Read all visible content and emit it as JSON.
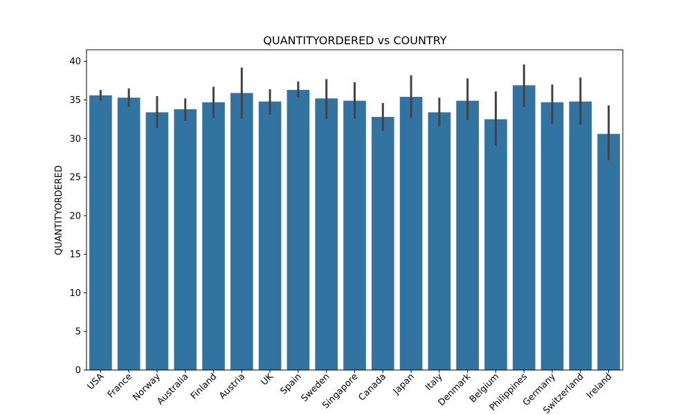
{
  "chart_data": {
    "type": "bar",
    "title": "QUANTITYORDERED vs COUNTRY",
    "xlabel": "",
    "ylabel": "QUANTITYORDERED",
    "ylim": [
      0,
      41.5
    ],
    "yticks": [
      0,
      5,
      10,
      15,
      20,
      25,
      30,
      35,
      40
    ],
    "categories": [
      "USA",
      "France",
      "Norway",
      "Australia",
      "Finland",
      "Austria",
      "UK",
      "Spain",
      "Sweden",
      "Singapore",
      "Canada",
      "Japan",
      "Italy",
      "Denmark",
      "Belgium",
      "Philippines",
      "Germany",
      "Switzerland",
      "Ireland"
    ],
    "values": [
      35.6,
      35.3,
      33.4,
      33.8,
      34.7,
      35.9,
      34.8,
      36.3,
      35.2,
      34.9,
      32.8,
      35.4,
      33.4,
      34.9,
      32.5,
      36.9,
      34.7,
      34.8,
      30.6
    ],
    "error_low": [
      34.9,
      34.1,
      31.4,
      32.3,
      32.7,
      32.6,
      33.1,
      35.3,
      32.5,
      32.6,
      31.0,
      32.7,
      31.6,
      32.4,
      29.1,
      34.1,
      31.9,
      31.8,
      27.2
    ],
    "error_high": [
      36.3,
      36.5,
      35.5,
      35.2,
      36.7,
      39.2,
      36.4,
      37.4,
      37.7,
      37.3,
      34.6,
      38.2,
      35.3,
      37.8,
      36.1,
      39.6,
      37.0,
      37.9,
      34.3
    ],
    "bar_color": "#3274a1",
    "error_color": "#424242",
    "grid": false,
    "legend": "none"
  }
}
